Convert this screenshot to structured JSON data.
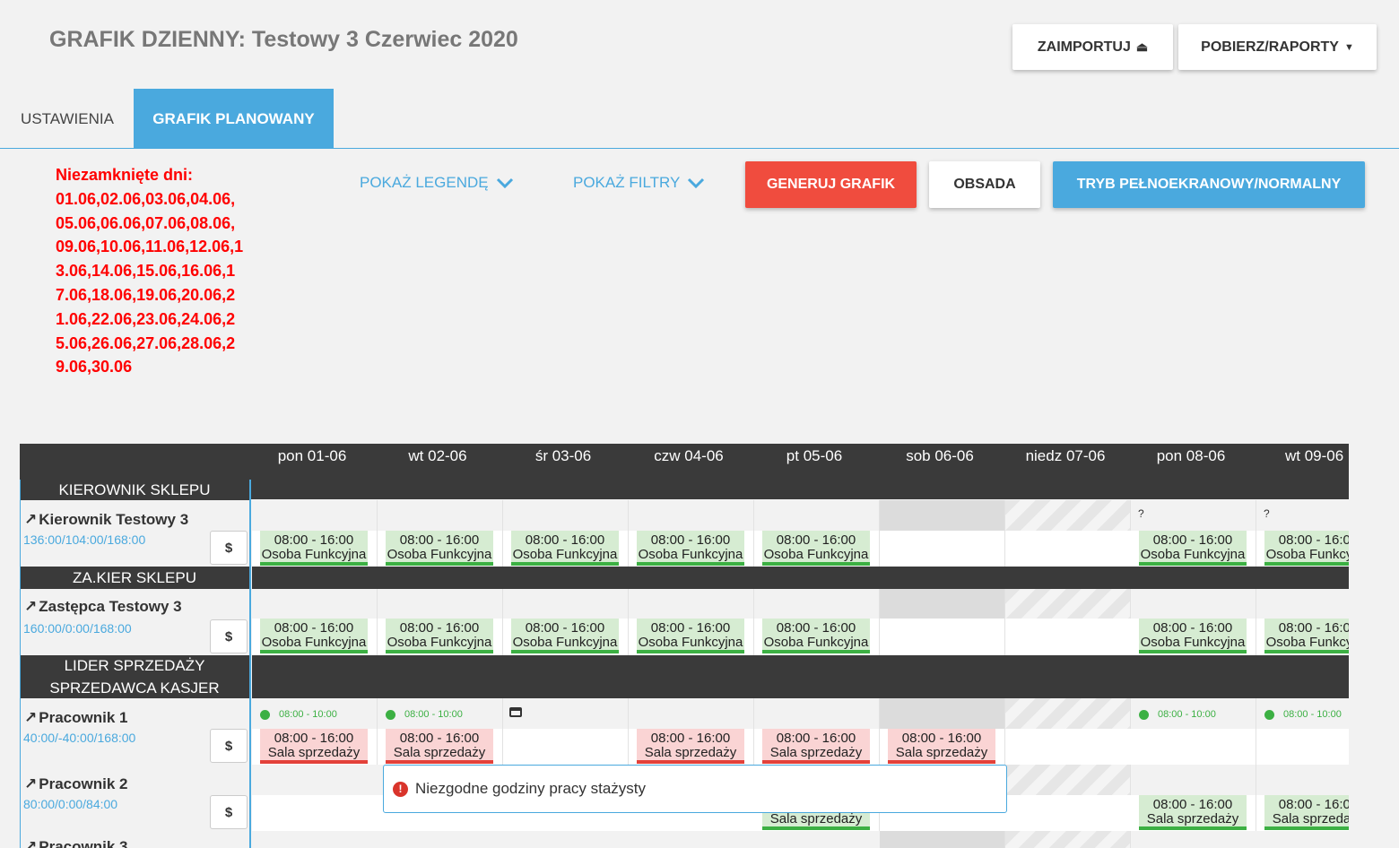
{
  "header": {
    "title": "GRAFIK DZIENNY: Testowy 3 Czerwiec 2020",
    "import_label": "ZAIMPORTUJ",
    "reports_label": "POBIERZ/RAPORTY"
  },
  "tabs": [
    {
      "label": "USTAWIENIA",
      "active": false
    },
    {
      "label": "GRAFIK PLANOWANY",
      "active": true
    }
  ],
  "unclosed_days": {
    "label": "Niezamknięte dni:",
    "days": "01.06,02.06,03.06,04.06,05.06,06.06,07.06,08.06,09.06,10.06,11.06,12.06,13.06,14.06,15.06,16.06,17.06,18.06,19.06,20.06,21.06,22.06,23.06,24.06,25.06,26.06,27.06,28.06,29.06,30.06"
  },
  "toolbar": {
    "legend_label": "POKAŻ LEGENDĘ",
    "filters_label": "POKAŻ FILTRY",
    "generate_label": "GENERUJ GRAFIK",
    "staffing_label": "OBSADA",
    "fullscreen_label": "TRYB PEŁNOEKRANOWY/NORMALNY"
  },
  "colors": {
    "accent": "#4aa9de",
    "generate": "#f04c3e",
    "shift_green": "#d6ecd2",
    "shift_red": "#fad4d4"
  },
  "days": [
    "pon 01-06",
    "wt 02-06",
    "śr 03-06",
    "czw 04-06",
    "pt 05-06",
    "sob 06-06",
    "niedz 07-06",
    "pon 08-06",
    "wt 09-06"
  ],
  "positions": [
    {
      "name": "KIEROWNIK SKLEPU"
    },
    {
      "name": "ZA.KIER SKLEPU"
    },
    {
      "name": "LIDER SPRZEDAŻY SPRZEDAWCA KASJER"
    }
  ],
  "employees": [
    {
      "name": "Kierownik Testowy 3",
      "hours": "136:00/104:00/168:00",
      "dollar": "$"
    },
    {
      "name": "Zastępca Testowy 3",
      "hours": "160:00/0:00/168:00",
      "dollar": "$"
    },
    {
      "name": "Pracownik 1",
      "hours": "40:00/-40:00/168:00",
      "dollar": "$"
    },
    {
      "name": "Pracownik 2",
      "hours": "80:00/0:00/84:00",
      "dollar": "$"
    },
    {
      "name": "Pracownik 3"
    }
  ],
  "shift_time": "08:00 - 16:00",
  "shift_role_func": "Osoba Funkcyjna",
  "shift_role_sales": "Sala sprzedaży",
  "availability": "08:00 - 10:00",
  "unknown_mark": "?",
  "tooltip": "Niezgodne godziny pracy stażysty"
}
